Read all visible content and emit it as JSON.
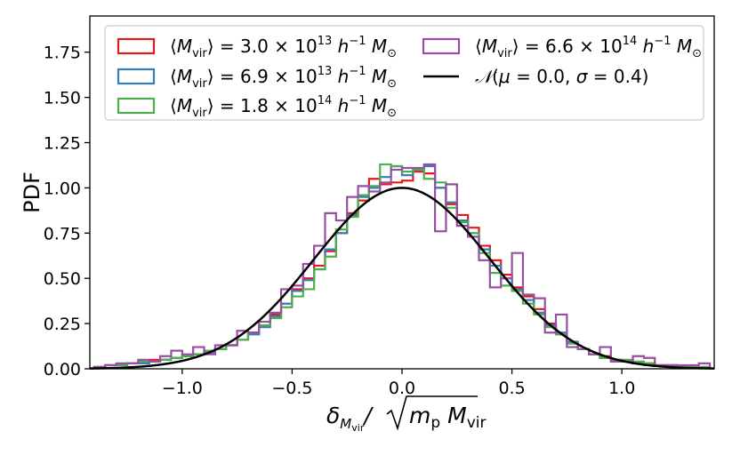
{
  "chart_data": {
    "type": "histogram",
    "ylabel": "PDF",
    "xlabel": "δ_{M_vir} / √(m_p M_vir)",
    "xlim": [
      -1.42,
      1.42
    ],
    "ylim": [
      0,
      1.95
    ],
    "xticks": [
      -1.0,
      -0.5,
      0.0,
      0.5,
      1.0
    ],
    "xtick_labels": [
      "−1.0",
      "−0.5",
      "0.0",
      "0.5",
      "1.0"
    ],
    "yticks": [
      0.0,
      0.25,
      0.5,
      0.75,
      1.0,
      1.25,
      1.5,
      1.75
    ],
    "ytick_labels": [
      "0.00",
      "0.25",
      "0.50",
      "0.75",
      "1.00",
      "1.25",
      "1.50",
      "1.75"
    ],
    "bin_edges": [
      -1.4,
      -1.35,
      -1.3,
      -1.25,
      -1.2,
      -1.15,
      -1.1,
      -1.05,
      -1.0,
      -0.95,
      -0.9,
      -0.85,
      -0.8,
      -0.75,
      -0.7,
      -0.65,
      -0.6,
      -0.55,
      -0.5,
      -0.45,
      -0.4,
      -0.35,
      -0.3,
      -0.25,
      -0.2,
      -0.15,
      -0.1,
      -0.05,
      0.0,
      0.05,
      0.1,
      0.15,
      0.2,
      0.25,
      0.3,
      0.35,
      0.4,
      0.45,
      0.5,
      0.55,
      0.6,
      0.65,
      0.7,
      0.75,
      0.8,
      0.85,
      0.9,
      0.95,
      1.0,
      1.05,
      1.1,
      1.15,
      1.2,
      1.25,
      1.3,
      1.35,
      1.4
    ],
    "series": [
      {
        "name": "⟨M_vir⟩ = 3.0 × 10^13 h^−1 M_⊙",
        "color": "#e41a1c",
        "values": [
          0.01,
          0.02,
          0.02,
          0.03,
          0.04,
          0.05,
          0.05,
          0.06,
          0.07,
          0.08,
          0.09,
          0.11,
          0.13,
          0.16,
          0.2,
          0.24,
          0.3,
          0.36,
          0.44,
          0.5,
          0.57,
          0.65,
          0.75,
          0.86,
          0.93,
          1.05,
          1.02,
          1.03,
          1.04,
          1.09,
          1.08,
          1.0,
          0.91,
          0.85,
          0.78,
          0.68,
          0.6,
          0.52,
          0.45,
          0.4,
          0.33,
          0.25,
          0.19,
          0.14,
          0.11,
          0.08,
          0.07,
          0.05,
          0.04,
          0.03,
          0.03,
          0.02,
          0.02,
          0.01,
          0.01,
          0.01
        ]
      },
      {
        "name": "⟨M_vir⟩ = 6.9 × 10^13 h^−1 M_⊙",
        "color": "#377eb8",
        "values": [
          0.01,
          0.02,
          0.02,
          0.03,
          0.03,
          0.04,
          0.05,
          0.06,
          0.07,
          0.08,
          0.09,
          0.11,
          0.13,
          0.16,
          0.19,
          0.23,
          0.29,
          0.36,
          0.43,
          0.49,
          0.55,
          0.66,
          0.75,
          0.85,
          0.95,
          1.0,
          1.06,
          1.12,
          1.07,
          1.1,
          1.12,
          1.0,
          0.92,
          0.82,
          0.75,
          0.66,
          0.57,
          0.5,
          0.44,
          0.38,
          0.31,
          0.24,
          0.2,
          0.15,
          0.11,
          0.08,
          0.06,
          0.05,
          0.04,
          0.03,
          0.02,
          0.02,
          0.02,
          0.01,
          0.01,
          0.01
        ]
      },
      {
        "name": "⟨M_vir⟩ = 1.8 × 10^14 h^−1 M_⊙",
        "color": "#4daf4a",
        "values": [
          0.01,
          0.02,
          0.02,
          0.03,
          0.04,
          0.04,
          0.05,
          0.06,
          0.07,
          0.08,
          0.1,
          0.11,
          0.13,
          0.16,
          0.2,
          0.24,
          0.28,
          0.34,
          0.4,
          0.44,
          0.55,
          0.62,
          0.77,
          0.84,
          0.96,
          1.01,
          1.13,
          1.12,
          1.09,
          1.1,
          1.05,
          1.03,
          0.89,
          0.81,
          0.75,
          0.64,
          0.53,
          0.46,
          0.43,
          0.36,
          0.3,
          0.23,
          0.19,
          0.14,
          0.11,
          0.08,
          0.06,
          0.05,
          0.05,
          0.04,
          0.03,
          0.02,
          0.02,
          0.01,
          0.01,
          0.01
        ]
      },
      {
        "name": "⟨M_vir⟩ = 6.6 × 10^14 h^−1 M_⊙",
        "color": "#984ea3",
        "values": [
          0.01,
          0.02,
          0.03,
          0.03,
          0.05,
          0.04,
          0.07,
          0.1,
          0.08,
          0.12,
          0.08,
          0.13,
          0.13,
          0.21,
          0.2,
          0.26,
          0.31,
          0.44,
          0.46,
          0.58,
          0.68,
          0.86,
          0.82,
          0.95,
          1.01,
          0.98,
          1.03,
          1.1,
          1.11,
          1.11,
          1.13,
          0.76,
          1.02,
          0.79,
          0.73,
          0.6,
          0.45,
          0.5,
          0.64,
          0.41,
          0.39,
          0.2,
          0.3,
          0.12,
          0.11,
          0.08,
          0.12,
          0.04,
          0.04,
          0.07,
          0.06,
          0.02,
          0.02,
          0.02,
          0.02,
          0.03
        ]
      }
    ],
    "curve": {
      "name": "𝒩(μ = 0.0, σ = 0.4)",
      "color": "#000000",
      "mu": 0.0,
      "sigma": 0.4,
      "peak": 1.0
    },
    "legend_location": "upper inside frame"
  }
}
